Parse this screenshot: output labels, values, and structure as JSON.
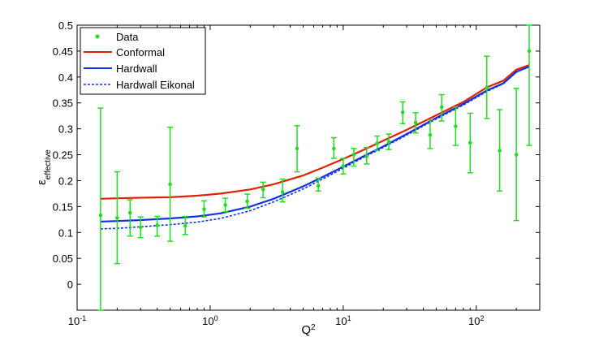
{
  "chart_data": {
    "type": "scatter",
    "title": "",
    "xlabel": "Q",
    "xlabel_sup": "2",
    "ylabel": "ε",
    "ylabel_sub": "effective",
    "xscale": "log",
    "xlim": [
      0.1,
      300
    ],
    "ylim": [
      -0.05,
      0.5
    ],
    "grid": false,
    "legend_position": "top-left",
    "x_ticks": [
      {
        "value": 0.1,
        "base": "10",
        "exp": "-1"
      },
      {
        "value": 1,
        "base": "10",
        "exp": "0"
      },
      {
        "value": 10,
        "base": "10",
        "exp": "1"
      },
      {
        "value": 100,
        "base": "10",
        "exp": "2"
      }
    ],
    "y_ticks": [
      {
        "value": 0,
        "label": "0"
      },
      {
        "value": 0.05,
        "label": "0.05"
      },
      {
        "value": 0.1,
        "label": "0.1"
      },
      {
        "value": 0.15,
        "label": "0.15"
      },
      {
        "value": 0.2,
        "label": "0.2"
      },
      {
        "value": 0.25,
        "label": "0.25"
      },
      {
        "value": 0.3,
        "label": "0.3"
      },
      {
        "value": 0.35,
        "label": "0.35"
      },
      {
        "value": 0.4,
        "label": "0.4"
      },
      {
        "value": 0.45,
        "label": "0.45"
      },
      {
        "value": 0.5,
        "label": "0.5"
      }
    ],
    "legend": [
      {
        "label": "Data",
        "style": "marker",
        "color": "#22dd22"
      },
      {
        "label": "Conformal",
        "style": "solid",
        "color": "#dd2200"
      },
      {
        "label": "Hardwall",
        "style": "solid",
        "color": "#1133dd"
      },
      {
        "label": "Hardwall Eikonal",
        "style": "dashed",
        "color": "#1133dd"
      }
    ],
    "data_points": {
      "name": "Data",
      "color": "#22dd22",
      "points": [
        {
          "x": 0.15,
          "y": 0.133,
          "lo": -0.05,
          "hi": 0.34
        },
        {
          "x": 0.2,
          "y": 0.128,
          "lo": 0.04,
          "hi": 0.217
        },
        {
          "x": 0.25,
          "y": 0.138,
          "lo": 0.093,
          "hi": 0.163
        },
        {
          "x": 0.3,
          "y": 0.11,
          "lo": 0.09,
          "hi": 0.13
        },
        {
          "x": 0.4,
          "y": 0.114,
          "lo": 0.093,
          "hi": 0.131
        },
        {
          "x": 0.5,
          "y": 0.193,
          "lo": 0.083,
          "hi": 0.303
        },
        {
          "x": 0.65,
          "y": 0.113,
          "lo": 0.096,
          "hi": 0.131
        },
        {
          "x": 0.9,
          "y": 0.145,
          "lo": 0.13,
          "hi": 0.161
        },
        {
          "x": 1.3,
          "y": 0.153,
          "lo": 0.14,
          "hi": 0.166
        },
        {
          "x": 1.9,
          "y": 0.16,
          "lo": 0.147,
          "hi": 0.174
        },
        {
          "x": 2.5,
          "y": 0.183,
          "lo": 0.167,
          "hi": 0.197
        },
        {
          "x": 3.5,
          "y": 0.178,
          "lo": 0.159,
          "hi": 0.203
        },
        {
          "x": 4.5,
          "y": 0.262,
          "lo": 0.217,
          "hi": 0.306
        },
        {
          "x": 6.5,
          "y": 0.19,
          "lo": 0.18,
          "hi": 0.205
        },
        {
          "x": 8.5,
          "y": 0.262,
          "lo": 0.243,
          "hi": 0.283
        },
        {
          "x": 10,
          "y": 0.228,
          "lo": 0.213,
          "hi": 0.243
        },
        {
          "x": 12,
          "y": 0.25,
          "lo": 0.228,
          "hi": 0.262
        },
        {
          "x": 15,
          "y": 0.247,
          "lo": 0.232,
          "hi": 0.264
        },
        {
          "x": 18,
          "y": 0.272,
          "lo": 0.258,
          "hi": 0.286
        },
        {
          "x": 22,
          "y": 0.275,
          "lo": 0.26,
          "hi": 0.29
        },
        {
          "x": 28,
          "y": 0.332,
          "lo": 0.31,
          "hi": 0.352
        },
        {
          "x": 35,
          "y": 0.312,
          "lo": 0.292,
          "hi": 0.331
        },
        {
          "x": 45,
          "y": 0.288,
          "lo": 0.262,
          "hi": 0.317
        },
        {
          "x": 55,
          "y": 0.342,
          "lo": 0.315,
          "hi": 0.366
        },
        {
          "x": 70,
          "y": 0.305,
          "lo": 0.268,
          "hi": 0.342
        },
        {
          "x": 90,
          "y": 0.273,
          "lo": 0.215,
          "hi": 0.33
        },
        {
          "x": 120,
          "y": 0.38,
          "lo": 0.32,
          "hi": 0.44
        },
        {
          "x": 150,
          "y": 0.258,
          "lo": 0.18,
          "hi": 0.337
        },
        {
          "x": 200,
          "y": 0.25,
          "lo": 0.123,
          "hi": 0.378
        },
        {
          "x": 250,
          "y": 0.45,
          "lo": 0.268,
          "hi": 0.5
        }
      ]
    },
    "series": [
      {
        "name": "Conformal",
        "color": "#dd2200",
        "dash": false,
        "x": [
          0.15,
          0.2,
          0.3,
          0.5,
          0.8,
          1.2,
          2,
          3,
          5,
          7,
          10,
          15,
          20,
          30,
          50,
          80,
          120,
          160,
          200,
          250
        ],
        "y": [
          0.165,
          0.166,
          0.167,
          0.168,
          0.171,
          0.175,
          0.183,
          0.193,
          0.21,
          0.225,
          0.242,
          0.262,
          0.277,
          0.298,
          0.326,
          0.352,
          0.38,
          0.393,
          0.414,
          0.423
        ]
      },
      {
        "name": "Hardwall",
        "color": "#1133dd",
        "dash": false,
        "x": [
          0.15,
          0.2,
          0.3,
          0.5,
          0.8,
          1.2,
          2,
          3,
          5,
          7,
          10,
          15,
          20,
          30,
          50,
          80,
          120,
          160,
          200,
          250
        ],
        "y": [
          0.121,
          0.122,
          0.124,
          0.127,
          0.131,
          0.137,
          0.15,
          0.165,
          0.189,
          0.207,
          0.227,
          0.25,
          0.266,
          0.29,
          0.321,
          0.348,
          0.374,
          0.388,
          0.41,
          0.42
        ]
      },
      {
        "name": "Hardwall Eikonal",
        "color": "#1133dd",
        "dash": true,
        "x": [
          0.15,
          0.2,
          0.3,
          0.5,
          0.8,
          1.2,
          2,
          3,
          5,
          7,
          10,
          15,
          20,
          30,
          50,
          80,
          120,
          160,
          200,
          250
        ],
        "y": [
          0.107,
          0.108,
          0.111,
          0.115,
          0.12,
          0.127,
          0.142,
          0.159,
          0.184,
          0.203,
          0.224,
          0.248,
          0.264,
          0.288,
          0.319,
          0.346,
          0.372,
          0.387,
          0.409,
          0.421
        ]
      }
    ]
  }
}
